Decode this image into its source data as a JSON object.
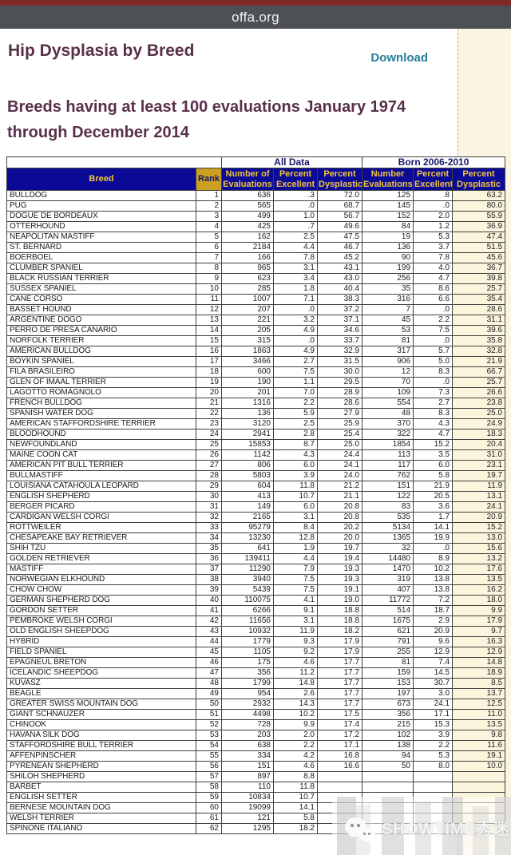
{
  "browser": {
    "url": "offa.org"
  },
  "page": {
    "title": "Hip Dysplasia by Breed",
    "download_label": "Download",
    "subtitle": "Breeds having at least 100 evaluations January 1974 through December 2014"
  },
  "colors": {
    "top_strip": "#7c2a23",
    "url_bar": "#4d5156",
    "heading": "#593049",
    "link": "#277d96",
    "header_navy": "#0a0a96",
    "header_gold_text": "#f2c43d",
    "rank_gold_bg": "#cd9f22",
    "cream_column": "#fbf5dd",
    "print_margin": "#faf4e2"
  },
  "table": {
    "group_headers": [
      {
        "label": "All Data",
        "span": 3
      },
      {
        "label": "Born 2006-2010",
        "span": 3
      }
    ],
    "columns": [
      "Breed",
      "Rank",
      "Number of\nEvaluations",
      "Percent\nExcellent",
      "Percent\nDysplastic",
      "Number\nEvaluations",
      "Percent\nExcellent",
      "Percent\nDysplastic"
    ],
    "rows": [
      [
        "BULLDOG",
        "1",
        "636",
        ".3",
        "72.0",
        "125",
        ".8",
        "63.2"
      ],
      [
        "PUG",
        "2",
        "565",
        ".0",
        "68.7",
        "145",
        ".0",
        "80.0"
      ],
      [
        "DOGUE DE BORDEAUX",
        "3",
        "499",
        "1.0",
        "56.7",
        "152",
        "2.0",
        "55.9"
      ],
      [
        "OTTERHOUND",
        "4",
        "425",
        ".7",
        "49.6",
        "84",
        "1.2",
        "36.9"
      ],
      [
        "NEAPOLITAN MASTIFF",
        "5",
        "162",
        "2.5",
        "47.5",
        "19",
        "5.3",
        "47.4"
      ],
      [
        "ST. BERNARD",
        "6",
        "2184",
        "4.4",
        "46.7",
        "136",
        "3.7",
        "51.5"
      ],
      [
        "BOERBOEL",
        "7",
        "166",
        "7.8",
        "45.2",
        "90",
        "7.8",
        "45.6"
      ],
      [
        "CLUMBER SPANIEL",
        "8",
        "965",
        "3.1",
        "43.1",
        "199",
        "4.0",
        "36.7"
      ],
      [
        "BLACK RUSSIAN TERRIER",
        "9",
        "623",
        "3.4",
        "43.0",
        "256",
        "4.7",
        "39.8"
      ],
      [
        "SUSSEX SPANIEL",
        "10",
        "285",
        "1.8",
        "40.4",
        "35",
        "8.6",
        "25.7"
      ],
      [
        "CANE CORSO",
        "11",
        "1007",
        "7.1",
        "38.3",
        "316",
        "6.6",
        "35.4"
      ],
      [
        "BASSET HOUND",
        "12",
        "207",
        ".0",
        "37.2",
        "7",
        ".0",
        "28.6"
      ],
      [
        "ARGENTINE DOGO",
        "13",
        "221",
        "3.2",
        "37.1",
        "45",
        "2.2",
        "31.1"
      ],
      [
        "PERRO DE PRESA CANARIO",
        "14",
        "205",
        "4.9",
        "34.6",
        "53",
        "7.5",
        "39.6"
      ],
      [
        "NORFOLK TERRIER",
        "15",
        "315",
        ".0",
        "33.7",
        "81",
        ".0",
        "35.8"
      ],
      [
        "AMERICAN BULLDOG",
        "16",
        "1863",
        "4.9",
        "32.9",
        "317",
        "5.7",
        "32.8"
      ],
      [
        "BOYKIN SPANIEL",
        "17",
        "3466",
        "2.7",
        "31.5",
        "906",
        "5.0",
        "21.9"
      ],
      [
        "FILA BRASILEIRO",
        "18",
        "600",
        "7.5",
        "30.0",
        "12",
        "8.3",
        "66.7"
      ],
      [
        "GLEN OF IMAAL TERRIER",
        "19",
        "190",
        "1.1",
        "29.5",
        "70",
        ".0",
        "25.7"
      ],
      [
        "LAGOTTO ROMAGNOLO",
        "20",
        "201",
        "7.0",
        "28.9",
        "109",
        "7.3",
        "26.6"
      ],
      [
        "FRENCH BULLDOG",
        "21",
        "1316",
        "2.2",
        "28.6",
        "554",
        "2.7",
        "23.8"
      ],
      [
        "SPANISH WATER DOG",
        "22",
        "136",
        "5.9",
        "27.9",
        "48",
        "8.3",
        "25.0"
      ],
      [
        "AMERICAN STAFFORDSHIRE TERRIER",
        "23",
        "3120",
        "2.5",
        "25.9",
        "370",
        "4.3",
        "24.9"
      ],
      [
        "BLOODHOUND",
        "24",
        "2941",
        "2.8",
        "25.4",
        "322",
        "4.7",
        "18.3"
      ],
      [
        "NEWFOUNDLAND",
        "25",
        "15853",
        "8.7",
        "25.0",
        "1854",
        "15.2",
        "20.4"
      ],
      [
        "MAINE COON CAT",
        "26",
        "1142",
        "4.3",
        "24.4",
        "113",
        "3.5",
        "31.0"
      ],
      [
        "AMERICAN PIT BULL TERRIER",
        "27",
        "806",
        "6.0",
        "24.1",
        "117",
        "6.0",
        "23.1"
      ],
      [
        "BULLMASTIFF",
        "28",
        "5803",
        "3.9",
        "24.0",
        "762",
        "5.8",
        "19.7"
      ],
      [
        "LOUISIANA CATAHOULA LEOPARD",
        "29",
        "604",
        "11.8",
        "21.2",
        "151",
        "21.9",
        "11.9"
      ],
      [
        "ENGLISH SHEPHERD",
        "30",
        "413",
        "10.7",
        "21.1",
        "122",
        "20.5",
        "13.1"
      ],
      [
        "BERGER PICARD",
        "31",
        "149",
        "6.0",
        "20.8",
        "83",
        "3.6",
        "24.1"
      ],
      [
        "CARDIGAN WELSH CORGI",
        "32",
        "2165",
        "3.1",
        "20.8",
        "535",
        "1.7",
        "20.9"
      ],
      [
        "ROTTWEILER",
        "33",
        "95279",
        "8.4",
        "20.2",
        "5134",
        "14.1",
        "15.2"
      ],
      [
        "CHESAPEAKE BAY RETRIEVER",
        "34",
        "13230",
        "12.8",
        "20.0",
        "1365",
        "19.9",
        "13.0"
      ],
      [
        "SHIH TZU",
        "35",
        "641",
        "1.9",
        "19.7",
        "32",
        ".0",
        "15.6"
      ],
      [
        "GOLDEN RETRIEVER",
        "36",
        "139411",
        "4.4",
        "19.4",
        "14480",
        "8.9",
        "13.2"
      ],
      [
        "MASTIFF",
        "37",
        "11290",
        "7.9",
        "19.3",
        "1470",
        "10.2",
        "17.6"
      ],
      [
        "NORWEGIAN ELKHOUND",
        "38",
        "3940",
        "7.5",
        "19.3",
        "319",
        "13.8",
        "13.5"
      ],
      [
        "CHOW CHOW",
        "39",
        "5439",
        "7.5",
        "19.1",
        "407",
        "13.8",
        "16.2"
      ],
      [
        "GERMAN SHEPHERD DOG",
        "40",
        "110075",
        "4.1",
        "19.0",
        "11772",
        "7.2",
        "18.0"
      ],
      [
        "GORDON SETTER",
        "41",
        "6266",
        "9.1",
        "18.8",
        "514",
        "18.7",
        "9.9"
      ],
      [
        "PEMBROKE WELSH CORGI",
        "42",
        "11656",
        "3.1",
        "18.8",
        "1675",
        "2.9",
        "17.9"
      ],
      [
        "OLD ENGLISH SHEEPDOG",
        "43",
        "10932",
        "11.9",
        "18.2",
        "621",
        "20.9",
        "9.7"
      ],
      [
        "HYBRID",
        "44",
        "1779",
        "9.3",
        "17.9",
        "791",
        "9.6",
        "16.3"
      ],
      [
        "FIELD SPANIEL",
        "45",
        "1105",
        "9.2",
        "17.9",
        "255",
        "12.9",
        "12.9"
      ],
      [
        "EPAGNEUL BRETON",
        "46",
        "175",
        "4.6",
        "17.7",
        "81",
        "7.4",
        "14.8"
      ],
      [
        "ICELANDIC SHEEPDOG",
        "47",
        "356",
        "11.2",
        "17.7",
        "159",
        "14.5",
        "18.9"
      ],
      [
        "KUVASZ",
        "48",
        "1799",
        "14.8",
        "17.7",
        "153",
        "30.7",
        "8.5"
      ],
      [
        "BEAGLE",
        "49",
        "954",
        "2.6",
        "17.7",
        "197",
        "3.0",
        "13.7"
      ],
      [
        "GREATER SWISS MOUNTAIN DOG",
        "50",
        "2932",
        "14.3",
        "17.7",
        "673",
        "24.1",
        "12.5"
      ],
      [
        "GIANT SCHNAUZER",
        "51",
        "4498",
        "10.2",
        "17.5",
        "356",
        "17.1",
        "11.0"
      ],
      [
        "CHINOOK",
        "52",
        "728",
        "9.9",
        "17.4",
        "215",
        "15.3",
        "13.5"
      ],
      [
        "HAVANA SILK DOG",
        "53",
        "203",
        "2.0",
        "17.2",
        "102",
        "3.9",
        "9.8"
      ],
      [
        "STAFFORDSHIRE BULL TERRIER",
        "54",
        "638",
        "2.2",
        "17.1",
        "138",
        "2.2",
        "11.6"
      ],
      [
        "AFFENPINSCHER",
        "55",
        "334",
        "4.2",
        "16.8",
        "94",
        "5.3",
        "19.1"
      ],
      [
        "PYRENEAN SHEPHERD",
        "56",
        "151",
        "4.6",
        "16.6",
        "50",
        "8.0",
        "10.0"
      ],
      [
        "SHILOH SHEPHERD",
        "57",
        "897",
        "8.8",
        "",
        "",
        "",
        ""
      ],
      [
        "BARBET",
        "58",
        "110",
        "11.8",
        "",
        "",
        "",
        ""
      ],
      [
        "ENGLISH SETTER",
        "59",
        "10834",
        "10.7",
        "",
        "",
        "",
        ""
      ],
      [
        "BERNESE MOUNTAIN DOG",
        "60",
        "19099",
        "14.1",
        "",
        "",
        "",
        ""
      ],
      [
        "WELSH TERRIER",
        "61",
        "121",
        "5.8",
        "",
        "",
        "",
        ""
      ],
      [
        "SPINONE ITALIANO",
        "62",
        "1295",
        "18.2",
        "",
        "",
        "",
        ""
      ]
    ]
  },
  "watermark": {
    "text": "SHOWTIME秀迷",
    "icon": "wechat-icon"
  }
}
